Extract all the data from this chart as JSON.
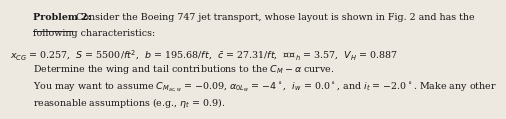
{
  "title_bold": "Problem 2:",
  "title_rest": " Consider the Boeing 747 jet transport, whose layout is shown in Fig. 2 and has the",
  "line2": "following characteristics:",
  "line4": "Determine the wing and tail contributions to the $C_M - \\alpha$ curve.",
  "line5": "You may want to assume $C_{M_{ac,w}}$ = $-$0.09, $\\alpha_{0L_w}$ = $-4^\\circ$,  $i_w$ = 0.0$^\\circ$, and $i_t$ = $-$2.0$^\\circ$. Make any other",
  "line6": "reasonable assumptions (e.g., $\\eta_t$ = 0.9).",
  "bg_color": "#ede8e0",
  "text_color": "#1a1a1a",
  "font_size": 6.8
}
